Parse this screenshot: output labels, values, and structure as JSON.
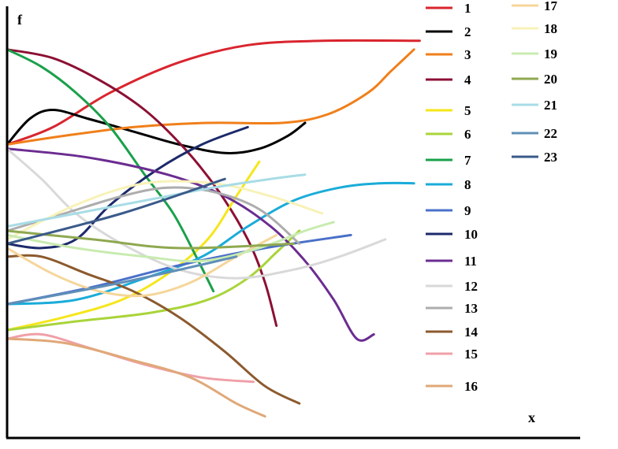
{
  "chart_data": {
    "type": "line",
    "title": "",
    "xlabel": "x",
    "ylabel": "f",
    "xlim": [
      0,
      100
    ],
    "ylim": [
      0,
      100
    ],
    "grid": false,
    "legend_position": "right",
    "series": [
      {
        "name": "1",
        "color": "#d9252e",
        "points": [
          [
            0,
            68
          ],
          [
            8,
            72
          ],
          [
            18,
            80
          ],
          [
            30,
            87
          ],
          [
            42,
            91
          ],
          [
            55,
            92
          ],
          [
            72,
            92
          ]
        ]
      },
      {
        "name": "2",
        "color": "#000000",
        "points": [
          [
            0,
            68
          ],
          [
            4,
            74
          ],
          [
            8,
            76
          ],
          [
            14,
            74
          ],
          [
            22,
            71
          ],
          [
            30,
            68
          ],
          [
            38,
            66
          ],
          [
            44,
            67
          ],
          [
            49,
            70
          ],
          [
            52,
            73
          ]
        ]
      },
      {
        "name": "3",
        "color": "#f07f1a",
        "points": [
          [
            0,
            68
          ],
          [
            10,
            70
          ],
          [
            22,
            72
          ],
          [
            35,
            73
          ],
          [
            48,
            73
          ],
          [
            56,
            75
          ],
          [
            63,
            80
          ],
          [
            67,
            85
          ],
          [
            71,
            90
          ]
        ]
      },
      {
        "name": "4",
        "color": "#8c1034",
        "points": [
          [
            0,
            90
          ],
          [
            8,
            88
          ],
          [
            16,
            83
          ],
          [
            24,
            76
          ],
          [
            31,
            67
          ],
          [
            37,
            57
          ],
          [
            42,
            46
          ],
          [
            45,
            36
          ],
          [
            47,
            26
          ]
        ]
      },
      {
        "name": "5",
        "color": "#f5e61a",
        "points": [
          [
            0,
            25
          ],
          [
            10,
            28
          ],
          [
            20,
            32
          ],
          [
            28,
            38
          ],
          [
            35,
            46
          ],
          [
            40,
            56
          ],
          [
            44,
            64
          ]
        ]
      },
      {
        "name": "6",
        "color": "#a9d43a",
        "points": [
          [
            0,
            25
          ],
          [
            12,
            27
          ],
          [
            25,
            29
          ],
          [
            35,
            32
          ],
          [
            42,
            37
          ],
          [
            47,
            43
          ],
          [
            51,
            48
          ]
        ]
      },
      {
        "name": "7",
        "color": "#1aa04a",
        "points": [
          [
            0,
            90
          ],
          [
            6,
            86
          ],
          [
            12,
            80
          ],
          [
            18,
            72
          ],
          [
            24,
            61
          ],
          [
            29,
            52
          ],
          [
            33,
            42
          ],
          [
            36,
            34
          ]
        ]
      },
      {
        "name": "8",
        "color": "#1aacd9",
        "points": [
          [
            0,
            31
          ],
          [
            12,
            32
          ],
          [
            24,
            37
          ],
          [
            34,
            42
          ],
          [
            42,
            49
          ],
          [
            50,
            55
          ],
          [
            58,
            58
          ],
          [
            65,
            59
          ],
          [
            71,
            59
          ]
        ]
      },
      {
        "name": "9",
        "color": "#4a70c8",
        "points": [
          [
            0,
            31
          ],
          [
            15,
            35
          ],
          [
            30,
            40
          ],
          [
            45,
            44
          ],
          [
            60,
            47
          ]
        ]
      },
      {
        "name": "10",
        "color": "#1c2a6b",
        "points": [
          [
            0,
            45
          ],
          [
            6,
            44
          ],
          [
            12,
            46
          ],
          [
            18,
            54
          ],
          [
            26,
            62
          ],
          [
            34,
            68
          ],
          [
            42,
            72
          ]
        ]
      },
      {
        "name": "11",
        "color": "#6b2c91",
        "points": [
          [
            0,
            67
          ],
          [
            14,
            65
          ],
          [
            28,
            61
          ],
          [
            38,
            56
          ],
          [
            46,
            49
          ],
          [
            52,
            41
          ],
          [
            57,
            32
          ],
          [
            61,
            23
          ],
          [
            64,
            24
          ]
        ]
      },
      {
        "name": "12",
        "color": "#d9d9d9",
        "points": [
          [
            0,
            67
          ],
          [
            6,
            60
          ],
          [
            12,
            52
          ],
          [
            20,
            45
          ],
          [
            30,
            39
          ],
          [
            40,
            37
          ],
          [
            50,
            39
          ],
          [
            58,
            42
          ],
          [
            66,
            46
          ]
        ]
      },
      {
        "name": "13",
        "color": "#adadad",
        "points": [
          [
            0,
            48
          ],
          [
            10,
            52
          ],
          [
            20,
            56
          ],
          [
            28,
            58
          ],
          [
            36,
            57
          ],
          [
            44,
            53
          ],
          [
            51,
            45
          ]
        ]
      },
      {
        "name": "14",
        "color": "#8c5a2e",
        "points": [
          [
            0,
            42
          ],
          [
            6,
            42
          ],
          [
            14,
            38
          ],
          [
            22,
            34
          ],
          [
            30,
            28
          ],
          [
            38,
            20
          ],
          [
            45,
            12
          ],
          [
            51,
            8
          ]
        ]
      },
      {
        "name": "15",
        "color": "#f0a0a8",
        "points": [
          [
            0,
            23
          ],
          [
            6,
            24
          ],
          [
            14,
            21
          ],
          [
            24,
            17
          ],
          [
            34,
            14
          ],
          [
            43,
            13
          ]
        ]
      },
      {
        "name": "16",
        "color": "#e0a878",
        "points": [
          [
            0,
            23
          ],
          [
            10,
            22
          ],
          [
            22,
            18
          ],
          [
            32,
            14
          ],
          [
            40,
            8
          ],
          [
            45,
            5
          ]
        ]
      },
      {
        "name": "17",
        "color": "#f5d69a",
        "points": [
          [
            0,
            44
          ],
          [
            8,
            38
          ],
          [
            16,
            34
          ],
          [
            24,
            33
          ],
          [
            32,
            36
          ],
          [
            40,
            42
          ],
          [
            47,
            47
          ]
        ]
      },
      {
        "name": "18",
        "color": "#f8f2b8",
        "points": [
          [
            0,
            46
          ],
          [
            12,
            54
          ],
          [
            24,
            59
          ],
          [
            36,
            59
          ],
          [
            46,
            56
          ],
          [
            55,
            52
          ]
        ]
      },
      {
        "name": "19",
        "color": "#c8ebb0",
        "points": [
          [
            0,
            47
          ],
          [
            12,
            44
          ],
          [
            24,
            42
          ],
          [
            34,
            41
          ],
          [
            44,
            44
          ],
          [
            52,
            48
          ],
          [
            57,
            50
          ]
        ]
      },
      {
        "name": "20",
        "color": "#8fa850",
        "points": [
          [
            0,
            48
          ],
          [
            15,
            46
          ],
          [
            30,
            44
          ],
          [
            50,
            45
          ]
        ]
      },
      {
        "name": "21",
        "color": "#a8dce6",
        "points": [
          [
            0,
            49
          ],
          [
            12,
            52
          ],
          [
            24,
            55
          ],
          [
            36,
            58
          ],
          [
            46,
            60
          ],
          [
            52,
            61
          ]
        ]
      },
      {
        "name": "22",
        "color": "#5f8fb8",
        "points": [
          [
            0,
            31
          ],
          [
            20,
            36
          ],
          [
            40,
            42
          ]
        ]
      },
      {
        "name": "23",
        "color": "#3a5a8a",
        "points": [
          [
            0,
            45
          ],
          [
            20,
            52
          ],
          [
            38,
            60
          ]
        ]
      }
    ]
  }
}
